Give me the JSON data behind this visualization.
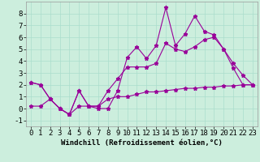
{
  "xlabel": "Windchill (Refroidissement éolien,°C)",
  "background_color": "#cceedd",
  "line_color": "#990099",
  "xlim": [
    -0.5,
    23.5
  ],
  "ylim": [
    -1.5,
    9.0
  ],
  "yticks": [
    -1,
    0,
    1,
    2,
    3,
    4,
    5,
    6,
    7,
    8
  ],
  "xticks": [
    0,
    1,
    2,
    3,
    4,
    5,
    6,
    7,
    8,
    9,
    10,
    11,
    12,
    13,
    14,
    15,
    16,
    17,
    18,
    19,
    20,
    21,
    22,
    23
  ],
  "series1_x": [
    0,
    1,
    2,
    3,
    4,
    5,
    6,
    7,
    8,
    9,
    10,
    11,
    12,
    13,
    14,
    15,
    16,
    17,
    18,
    19,
    20,
    21,
    22,
    23
  ],
  "series1_y": [
    2.2,
    2.0,
    0.8,
    0.0,
    -0.5,
    1.5,
    0.2,
    0.0,
    0.0,
    1.5,
    4.3,
    5.2,
    4.2,
    5.3,
    8.5,
    5.3,
    6.3,
    7.8,
    6.5,
    6.2,
    5.0,
    3.4,
    2.0,
    2.0
  ],
  "series2_x": [
    0,
    1,
    2,
    3,
    4,
    5,
    6,
    7,
    8,
    9,
    10,
    11,
    12,
    13,
    14,
    15,
    16,
    17,
    18,
    19,
    20,
    21,
    22,
    23
  ],
  "series2_y": [
    2.2,
    2.0,
    0.8,
    0.0,
    -0.5,
    1.5,
    0.2,
    0.2,
    1.5,
    2.5,
    3.5,
    3.5,
    3.5,
    3.8,
    5.5,
    5.0,
    4.8,
    5.2,
    5.8,
    6.0,
    5.0,
    3.8,
    2.8,
    2.0
  ],
  "series3_x": [
    0,
    1,
    2,
    3,
    4,
    5,
    6,
    7,
    8,
    9,
    10,
    11,
    12,
    13,
    14,
    15,
    16,
    17,
    18,
    19,
    20,
    21,
    22,
    23
  ],
  "series3_y": [
    0.2,
    0.2,
    0.8,
    0.0,
    -0.5,
    0.2,
    0.2,
    0.2,
    0.8,
    1.0,
    1.0,
    1.2,
    1.4,
    1.4,
    1.5,
    1.6,
    1.7,
    1.7,
    1.8,
    1.8,
    1.9,
    1.9,
    2.0,
    2.0
  ],
  "grid_color": "#aaddcc",
  "xlabel_fontsize": 6.5,
  "tick_fontsize": 6.5
}
